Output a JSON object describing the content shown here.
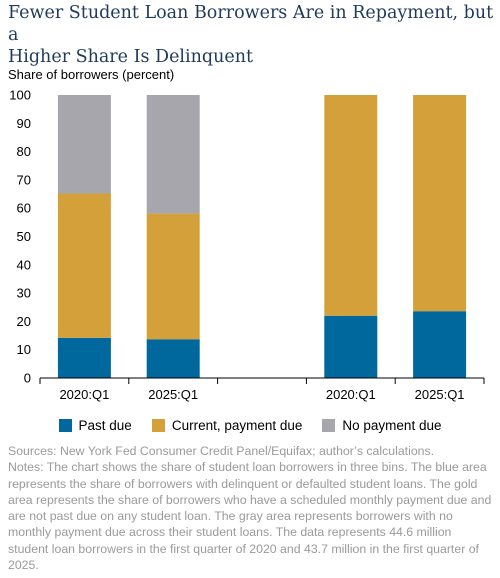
{
  "title_line1": "Fewer Student Loan Borrowers Are in Repayment, but a",
  "title_line2": "Higher Share Is Delinquent",
  "sources": "Sources: New York Fed Consumer Credit Panel/Equifax; author’s calculations.",
  "notes": "Notes: The chart shows the share of student loan borrowers in three bins. The blue area represents the share of borrowers with delinquent or defaulted student loans. The gold area represents the share of borrowers who have a scheduled monthly payment due and are not past due on any student loan. The gray area represents borrowers with no monthly payment due across their student loans. The data represents 44.6 million student loan borrowers in the first quarter of 2020 and 43.7 million in the first quarter of 2025.",
  "chart_data": {
    "type": "bar",
    "stacked": true,
    "ylabel": "Share of borrowers (percent)",
    "ylim": [
      0,
      100
    ],
    "yticks": [
      0,
      10,
      20,
      30,
      40,
      50,
      60,
      70,
      80,
      90,
      100
    ],
    "grid": false,
    "legend_position": "bottom",
    "categories": [
      "2020:Q1",
      "2025:Q1",
      "",
      "2020:Q1",
      "2025:Q1"
    ],
    "series": [
      {
        "name": "Past due",
        "color": "#00689d",
        "values": [
          14.2,
          13.7,
          null,
          22.0,
          23.6
        ]
      },
      {
        "name": "Current, payment due",
        "color": "#d4a03a",
        "values": [
          51.0,
          44.4,
          null,
          78.0,
          76.4
        ]
      },
      {
        "name": "No payment due",
        "color": "#a7a6ad",
        "values": [
          34.8,
          41.9,
          null,
          0,
          0
        ]
      }
    ]
  }
}
